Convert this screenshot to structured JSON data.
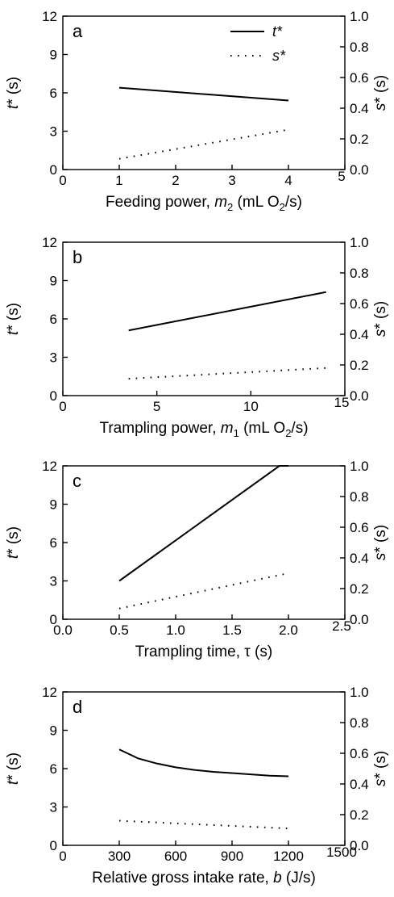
{
  "chart_data": [
    {
      "type": "line",
      "panel_label": "a",
      "xlabel": "Feeding power, m2 (mL O2/s)",
      "xlabel_parts": {
        "pre": "Feeding power, ",
        "var": "m",
        "sub": "2",
        "mid": " (mL O",
        "sub2": "2",
        "post": "/s)"
      },
      "ylabel_left": "t* (s)",
      "ylabel_right": "s* (s)",
      "xlim": [
        0,
        5
      ],
      "xticks": [
        0,
        1,
        2,
        3,
        4,
        5
      ],
      "xtick_labels": [
        "0",
        "1",
        "2",
        "3",
        "4",
        "5"
      ],
      "ylim_left": [
        0,
        12
      ],
      "yticks_left": [
        "0",
        "3",
        "6",
        "9",
        "12"
      ],
      "ylim_right": [
        0,
        1
      ],
      "yticks_right": [
        "0.0",
        "0.2",
        "0.4",
        "0.6",
        "0.8",
        "1.0"
      ],
      "legend": {
        "position": "top-right",
        "entries": [
          "t*",
          "s*"
        ]
      },
      "series": [
        {
          "name": "t*",
          "axis": "left",
          "style": "solid",
          "x": [
            1,
            4
          ],
          "y": [
            6.4,
            5.4
          ]
        },
        {
          "name": "s*",
          "axis": "right",
          "style": "dotted",
          "x": [
            1,
            4
          ],
          "y": [
            0.07,
            0.26
          ]
        }
      ]
    },
    {
      "type": "line",
      "panel_label": "b",
      "xlabel": "Trampling power, m1 (mL O2/s)",
      "xlabel_parts": {
        "pre": "Trampling power, ",
        "var": "m",
        "sub": "1",
        "mid": " (mL O",
        "sub2": "2",
        "post": "/s)"
      },
      "ylabel_left": "t* (s)",
      "ylabel_right": "s* (s)",
      "xlim": [
        0,
        15
      ],
      "xticks": [
        0,
        5,
        10,
        15
      ],
      "xtick_labels": [
        "0",
        "5",
        "10",
        "15"
      ],
      "ylim_left": [
        0,
        12
      ],
      "yticks_left": [
        "0",
        "3",
        "6",
        "9",
        "12"
      ],
      "ylim_right": [
        0,
        1
      ],
      "yticks_right": [
        "0.0",
        "0.2",
        "0.4",
        "0.6",
        "0.8",
        "1.0"
      ],
      "series": [
        {
          "name": "t*",
          "axis": "left",
          "style": "solid",
          "x": [
            3.5,
            14
          ],
          "y": [
            5.1,
            8.1
          ]
        },
        {
          "name": "s*",
          "axis": "right",
          "style": "dotted",
          "x": [
            3.5,
            14
          ],
          "y": [
            0.11,
            0.18
          ]
        }
      ]
    },
    {
      "type": "line",
      "panel_label": "c",
      "xlabel": "Trampling time, τ (s)",
      "xlabel_parts": {
        "pre": "Trampling time, ",
        "var": "",
        "sub": "",
        "mid": "τ (s)",
        "sub2": "",
        "post": ""
      },
      "ylabel_left": "t* (s)",
      "ylabel_right": "s* (s)",
      "xlim": [
        0,
        2.5
      ],
      "xticks": [
        0,
        0.5,
        1,
        1.5,
        2,
        2.5
      ],
      "xtick_labels": [
        "0.0",
        "0.5",
        "1.0",
        "1.5",
        "2.0",
        "2.5"
      ],
      "ylim_left": [
        0,
        12
      ],
      "yticks_left": [
        "0",
        "3",
        "6",
        "9",
        "12"
      ],
      "ylim_right": [
        0,
        1
      ],
      "yticks_right": [
        "0.0",
        "0.2",
        "0.4",
        "0.6",
        "0.8",
        "1.0"
      ],
      "series": [
        {
          "name": "t*",
          "axis": "left",
          "style": "solid",
          "x": [
            0.5,
            1.92,
            2.0
          ],
          "y": [
            3.0,
            12.0,
            12.0
          ]
        },
        {
          "name": "s*",
          "axis": "right",
          "style": "dotted",
          "x": [
            0.5,
            2.0
          ],
          "y": [
            0.07,
            0.3
          ]
        }
      ]
    },
    {
      "type": "line",
      "panel_label": "d",
      "xlabel": "Relative gross intake rate, b (J/s)",
      "xlabel_parts": {
        "pre": "Relative gross intake rate, ",
        "var": "b",
        "sub": "",
        "mid": " (J/s)",
        "sub2": "",
        "post": ""
      },
      "ylabel_left": "t* (s)",
      "ylabel_right": "s* (s)",
      "xlim": [
        0,
        1500
      ],
      "xticks": [
        0,
        300,
        600,
        900,
        1200,
        1500
      ],
      "xtick_labels": [
        "0",
        "300",
        "600",
        "900",
        "1200",
        "1500"
      ],
      "ylim_left": [
        0,
        12
      ],
      "yticks_left": [
        "0",
        "3",
        "6",
        "9",
        "12"
      ],
      "ylim_right": [
        0,
        1
      ],
      "yticks_right": [
        "0.0",
        "0.2",
        "0.4",
        "0.6",
        "0.8",
        "1.0"
      ],
      "series": [
        {
          "name": "t*",
          "axis": "left",
          "style": "solid",
          "x": [
            300,
            400,
            500,
            600,
            700,
            800,
            900,
            1000,
            1100,
            1200
          ],
          "y": [
            7.5,
            6.8,
            6.4,
            6.1,
            5.9,
            5.75,
            5.65,
            5.55,
            5.45,
            5.4
          ]
        },
        {
          "name": "s*",
          "axis": "right",
          "style": "dotted",
          "x": [
            300,
            1200
          ],
          "y": [
            0.16,
            0.11
          ]
        }
      ]
    }
  ]
}
